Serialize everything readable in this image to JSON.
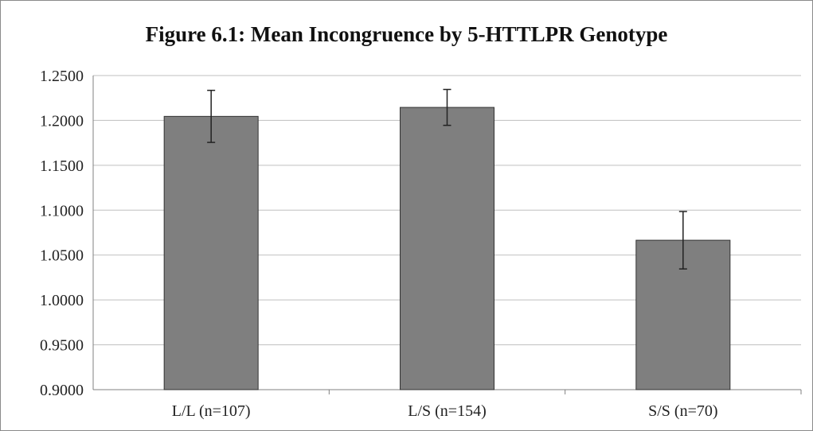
{
  "chart_data": {
    "type": "bar",
    "title": "Figure 6.1: Mean Incongruence by 5-HTTLPR Genotype",
    "categories": [
      "L/L (n=107)",
      "L/S (n=154)",
      "S/S (n=70)"
    ],
    "values": [
      1.2045,
      1.2145,
      1.0665
    ],
    "error_bars": [
      {
        "low": 1.1755,
        "high": 1.2335
      },
      {
        "low": 1.1945,
        "high": 1.2345
      },
      {
        "low": 1.0345,
        "high": 1.0985
      }
    ],
    "ylim": [
      0.9,
      1.25
    ],
    "yticks": [
      "0.9000",
      "0.9500",
      "1.0000",
      "1.0500",
      "1.1000",
      "1.1500",
      "1.2000",
      "1.2500"
    ],
    "ytick_values": [
      0.9,
      0.95,
      1.0,
      1.05,
      1.1,
      1.15,
      1.2,
      1.25
    ],
    "xlabel": "",
    "ylabel": "",
    "grid": true,
    "legend": "none",
    "colors": {
      "bar": "#7f7f7f",
      "bar_edge": "#333333",
      "grid": "#bfbfbf",
      "axis": "#808080",
      "error_bar": "#222222"
    }
  }
}
